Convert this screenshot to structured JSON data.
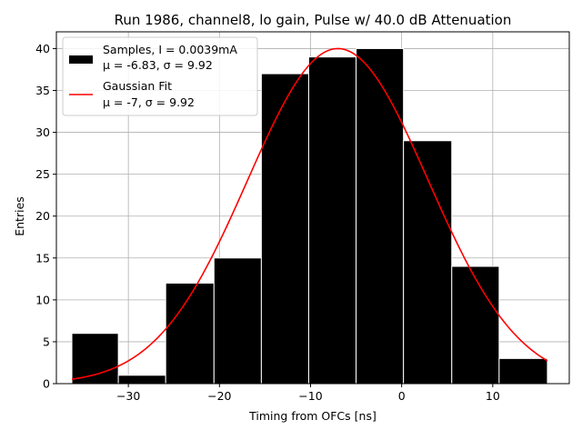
{
  "chart_data": {
    "type": "bar",
    "title": "Run 1986, channel8, lo gain, Pulse w/ 40.0 dB Attenuation",
    "xlabel": "Timing from OFCs [ns]",
    "ylabel": "Entries",
    "xlim": [
      -37.9,
      18.4
    ],
    "ylim": [
      0,
      42
    ],
    "xticks": [
      -30,
      -20,
      -10,
      0,
      10
    ],
    "yticks": [
      0,
      5,
      10,
      15,
      20,
      25,
      30,
      35,
      40
    ],
    "grid": true,
    "bin_edges": [
      -36.2,
      -31.1,
      -25.9,
      -20.6,
      -15.4,
      -10.2,
      -5.0,
      0.2,
      5.5,
      10.7,
      16.0
    ],
    "values": [
      6,
      1,
      12,
      15,
      37,
      39,
      40,
      29,
      14,
      3
    ],
    "fit": {
      "mu": -7,
      "sigma": 9.92,
      "amplitude": 40,
      "x_range": [
        -36.2,
        16.0
      ]
    },
    "legend": {
      "position": "upper-left",
      "entries": [
        {
          "label_line1": "Samples, I = 0.0039mA",
          "label_line2": "μ = -6.83, σ = 9.92",
          "color": "#000000",
          "kind": "patch"
        },
        {
          "label_line1": "Gaussian Fit",
          "label_line2": "μ = -7, σ = 9.92",
          "color": "#ff0000",
          "kind": "line"
        }
      ]
    }
  }
}
